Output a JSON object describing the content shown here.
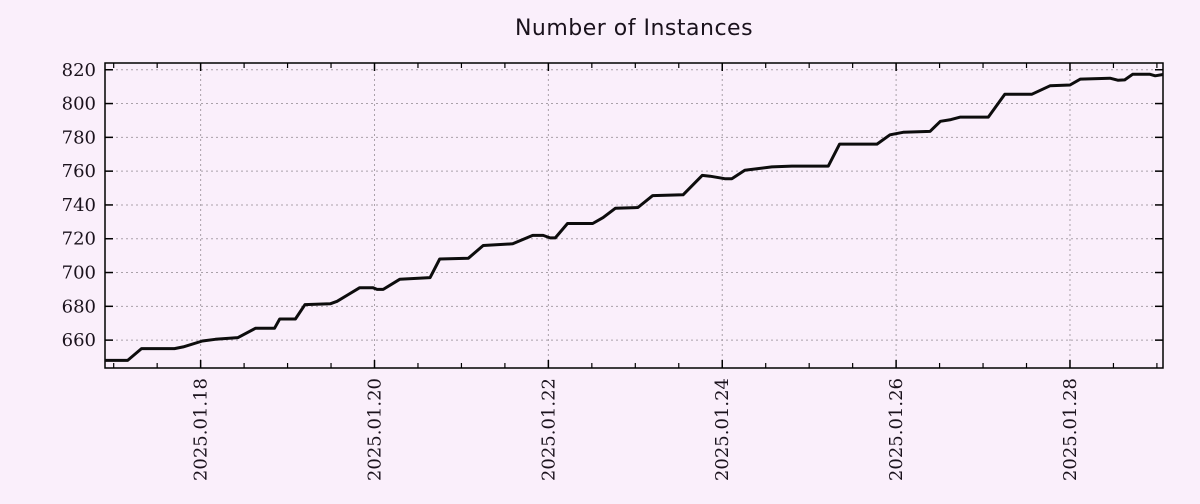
{
  "colors": {
    "background": "#faeffb",
    "grid": "#a9a1a9",
    "axis": "#000000",
    "line": "#0d0d0d",
    "text": "#1a121c"
  },
  "chart_data": {
    "type": "line",
    "title": "Number of Instances",
    "xlabel": "",
    "ylabel": "",
    "legend": "none",
    "grid": "dotted at major ticks, both axes",
    "x_unit": "date, January 2025 (fractional day of month)",
    "xlim": [
      16.9,
      29.07
    ],
    "ylim": [
      643.5,
      824.0
    ],
    "y_ticks": [
      660,
      680,
      700,
      720,
      740,
      760,
      780,
      800,
      820
    ],
    "x_major_ticks": [
      {
        "value": 18,
        "label": "2025.01.18"
      },
      {
        "value": 20,
        "label": "2025.01.20"
      },
      {
        "value": 22,
        "label": "2025.01.22"
      },
      {
        "value": 24,
        "label": "2025.01.24"
      },
      {
        "value": 26,
        "label": "2025.01.26"
      },
      {
        "value": 28,
        "label": "2025.01.28"
      }
    ],
    "x_minor_ticks": {
      "start": 17,
      "end": 29,
      "step": 0.5
    },
    "series": [
      {
        "name": "instances",
        "color": "#0d0d0d",
        "points": [
          [
            16.9,
            648
          ],
          [
            17.16,
            648
          ],
          [
            17.32,
            655
          ],
          [
            17.7,
            655
          ],
          [
            17.8,
            656
          ],
          [
            18.02,
            659.5
          ],
          [
            18.17,
            660.5
          ],
          [
            18.43,
            661.5
          ],
          [
            18.63,
            667
          ],
          [
            18.85,
            667
          ],
          [
            18.91,
            672.5
          ],
          [
            19.09,
            672.5
          ],
          [
            19.2,
            681
          ],
          [
            19.49,
            681.5
          ],
          [
            19.57,
            683
          ],
          [
            19.7,
            687
          ],
          [
            19.83,
            691
          ],
          [
            19.98,
            691
          ],
          [
            20.03,
            690
          ],
          [
            20.1,
            690
          ],
          [
            20.29,
            696
          ],
          [
            20.64,
            697
          ],
          [
            20.75,
            708
          ],
          [
            21.08,
            708.5
          ],
          [
            21.25,
            716
          ],
          [
            21.59,
            717
          ],
          [
            21.82,
            722
          ],
          [
            21.94,
            722
          ],
          [
            22.02,
            720.5
          ],
          [
            22.08,
            720.5
          ],
          [
            22.22,
            729
          ],
          [
            22.51,
            729
          ],
          [
            22.63,
            732.5
          ],
          [
            22.77,
            738
          ],
          [
            23.03,
            738.5
          ],
          [
            23.2,
            745.5
          ],
          [
            23.55,
            746
          ],
          [
            23.77,
            757.5
          ],
          [
            23.86,
            757
          ],
          [
            24.03,
            755.5
          ],
          [
            24.11,
            755.5
          ],
          [
            24.26,
            760.5
          ],
          [
            24.57,
            762.5
          ],
          [
            24.8,
            763
          ],
          [
            25.22,
            763
          ],
          [
            25.35,
            776
          ],
          [
            25.78,
            776
          ],
          [
            25.93,
            781.5
          ],
          [
            26.08,
            783
          ],
          [
            26.39,
            783.5
          ],
          [
            26.51,
            789.5
          ],
          [
            26.63,
            790.5
          ],
          [
            26.74,
            792
          ],
          [
            27.06,
            792
          ],
          [
            27.25,
            805.5
          ],
          [
            27.56,
            805.5
          ],
          [
            27.77,
            810.5
          ],
          [
            28.0,
            811
          ],
          [
            28.12,
            814.5
          ],
          [
            28.46,
            815
          ],
          [
            28.55,
            813.8
          ],
          [
            28.63,
            814
          ],
          [
            28.72,
            817.3
          ],
          [
            28.92,
            817.3
          ],
          [
            28.98,
            816.4
          ],
          [
            29.07,
            817.2
          ]
        ]
      }
    ]
  }
}
